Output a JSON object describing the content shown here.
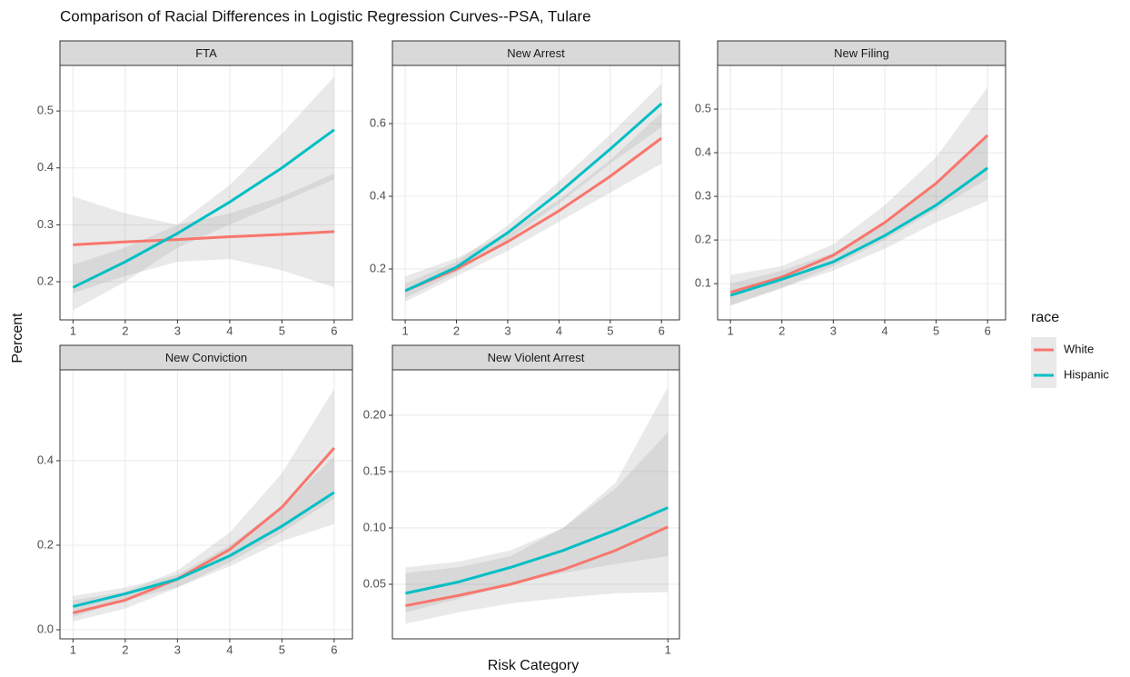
{
  "title": "Comparison of Racial Differences in Logistic Regression Curves--PSA, Tulare",
  "x_label": "Risk Category",
  "y_label": "Percent",
  "legend_title": "race",
  "legend": "right",
  "chart_data": [
    {
      "type": "line",
      "title": "FTA",
      "x": [
        1,
        2,
        3,
        4,
        5,
        6
      ],
      "xlim": [
        0.75,
        6.35
      ],
      "xticks": [
        1,
        2,
        3,
        4,
        5,
        6
      ],
      "ylim": [
        0.133,
        0.58
      ],
      "yticks": [
        0.2,
        0.3,
        0.4,
        0.5
      ],
      "grid": true,
      "series": [
        {
          "name": "White",
          "color": "#F8766D",
          "values": [
            0.265,
            0.27,
            0.274,
            0.279,
            0.283,
            0.288
          ],
          "lower": [
            0.18,
            0.21,
            0.235,
            0.24,
            0.22,
            0.19
          ],
          "upper": [
            0.35,
            0.32,
            0.3,
            0.32,
            0.35,
            0.39
          ]
        },
        {
          "name": "Hispanic",
          "color": "#00BFC4",
          "values": [
            0.19,
            0.235,
            0.285,
            0.34,
            0.4,
            0.467
          ],
          "lower": [
            0.15,
            0.2,
            0.26,
            0.3,
            0.34,
            0.38
          ],
          "upper": [
            0.23,
            0.26,
            0.3,
            0.37,
            0.46,
            0.56
          ]
        }
      ]
    },
    {
      "type": "line",
      "title": "New Arrest",
      "x": [
        1,
        2,
        3,
        4,
        5,
        6
      ],
      "xlim": [
        0.75,
        6.35
      ],
      "xticks": [
        1,
        2,
        3,
        4,
        5,
        6
      ],
      "ylim": [
        0.06,
        0.76
      ],
      "yticks": [
        0.2,
        0.4,
        0.6
      ],
      "grid": true,
      "series": [
        {
          "name": "White",
          "color": "#F8766D",
          "values": [
            0.14,
            0.2,
            0.275,
            0.36,
            0.455,
            0.56
          ],
          "lower": [
            0.11,
            0.18,
            0.25,
            0.33,
            0.41,
            0.49
          ],
          "upper": [
            0.18,
            0.23,
            0.3,
            0.39,
            0.5,
            0.63
          ]
        },
        {
          "name": "Hispanic",
          "color": "#00BFC4",
          "values": [
            0.14,
            0.205,
            0.3,
            0.41,
            0.53,
            0.655
          ],
          "lower": [
            0.12,
            0.19,
            0.28,
            0.38,
            0.49,
            0.59
          ],
          "upper": [
            0.16,
            0.22,
            0.32,
            0.44,
            0.57,
            0.71
          ]
        }
      ]
    },
    {
      "type": "line",
      "title": "New Filing",
      "x": [
        1,
        2,
        3,
        4,
        5,
        6
      ],
      "xlim": [
        0.75,
        6.35
      ],
      "xticks": [
        1,
        2,
        3,
        4,
        5,
        6
      ],
      "ylim": [
        0.017,
        0.6
      ],
      "yticks": [
        0.1,
        0.2,
        0.3,
        0.4,
        0.5
      ],
      "grid": true,
      "series": [
        {
          "name": "White",
          "color": "#F8766D",
          "values": [
            0.08,
            0.115,
            0.165,
            0.24,
            0.33,
            0.44
          ],
          "lower": [
            0.05,
            0.09,
            0.14,
            0.2,
            0.27,
            0.34
          ],
          "upper": [
            0.12,
            0.14,
            0.19,
            0.28,
            0.39,
            0.55
          ]
        },
        {
          "name": "Hispanic",
          "color": "#00BFC4",
          "values": [
            0.073,
            0.11,
            0.15,
            0.21,
            0.28,
            0.365
          ],
          "lower": [
            0.05,
            0.09,
            0.13,
            0.18,
            0.24,
            0.29
          ],
          "upper": [
            0.1,
            0.13,
            0.17,
            0.24,
            0.33,
            0.44
          ]
        }
      ]
    },
    {
      "type": "line",
      "title": "New Conviction",
      "x": [
        1,
        2,
        3,
        4,
        5,
        6
      ],
      "xlim": [
        0.75,
        6.35
      ],
      "xticks": [
        1,
        2,
        3,
        4,
        5,
        6
      ],
      "ylim": [
        -0.0215,
        0.615
      ],
      "yticks": [
        {
          "value": 0,
          "label": "0.0"
        },
        0.2,
        0.4
      ],
      "grid": true,
      "series": [
        {
          "name": "White",
          "color": "#F8766D",
          "values": [
            0.04,
            0.07,
            0.12,
            0.19,
            0.29,
            0.43
          ],
          "lower": [
            0.02,
            0.05,
            0.1,
            0.16,
            0.23,
            0.31
          ],
          "upper": [
            0.07,
            0.09,
            0.14,
            0.23,
            0.37,
            0.57
          ]
        },
        {
          "name": "Hispanic",
          "color": "#00BFC4",
          "values": [
            0.055,
            0.085,
            0.12,
            0.175,
            0.245,
            0.325
          ],
          "lower": [
            0.03,
            0.07,
            0.1,
            0.15,
            0.21,
            0.25
          ],
          "upper": [
            0.08,
            0.1,
            0.13,
            0.2,
            0.29,
            0.41
          ]
        }
      ]
    },
    {
      "type": "line",
      "title": "New Violent Arrest",
      "x": [
        -4,
        -3,
        -2,
        -1,
        0,
        1
      ],
      "xlim": [
        -4.25,
        1.22
      ],
      "xticks": [
        1
      ],
      "ylim": [
        0.0016,
        0.2403
      ],
      "yticks": [
        {
          "value": 0.05,
          "label": "0.05"
        },
        {
          "value": 0.1,
          "label": "0.10"
        },
        {
          "value": 0.15,
          "label": "0.15"
        },
        {
          "value": 0.2,
          "label": "0.20"
        }
      ],
      "grid": true,
      "series": [
        {
          "name": "White",
          "color": "#F8766D",
          "values": [
            0.031,
            0.04,
            0.05,
            0.063,
            0.08,
            0.101
          ],
          "lower": [
            0.015,
            0.025,
            0.033,
            0.038,
            0.042,
            0.043
          ],
          "upper": [
            0.06,
            0.065,
            0.075,
            0.1,
            0.14,
            0.225
          ]
        },
        {
          "name": "Hispanic",
          "color": "#00BFC4",
          "values": [
            0.042,
            0.052,
            0.065,
            0.08,
            0.098,
            0.118
          ],
          "lower": [
            0.025,
            0.037,
            0.05,
            0.06,
            0.068,
            0.075
          ],
          "upper": [
            0.065,
            0.07,
            0.08,
            0.1,
            0.135,
            0.185
          ]
        }
      ]
    }
  ]
}
